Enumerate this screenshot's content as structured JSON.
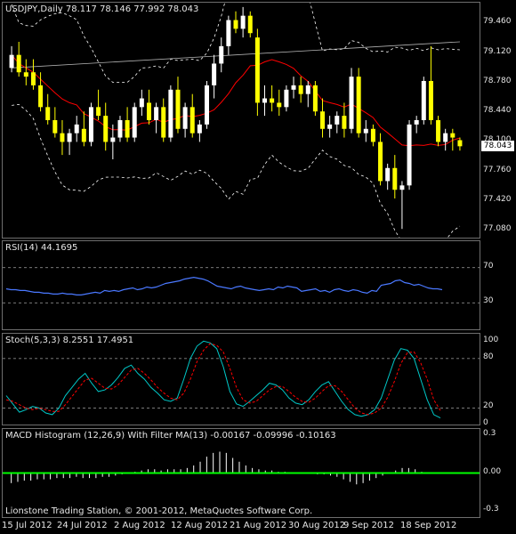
{
  "chart_data": [
    {
      "type": "candlestick",
      "title": "USDJPY,Daily  78.117 78.146 77.992 78.043",
      "y_ticks": [
        "79.460",
        "79.120",
        "78.780",
        "78.440",
        "78.100",
        "77.760",
        "77.420",
        "77.080"
      ],
      "ylim": [
        77.0,
        79.7
      ],
      "current_price": "78.043",
      "candles": [
        [
          78.95,
          79.2,
          78.9,
          79.1
        ],
        [
          79.1,
          79.25,
          78.85,
          78.9
        ],
        [
          78.9,
          79.05,
          78.75,
          78.85
        ],
        [
          78.9,
          79.05,
          78.7,
          78.75
        ],
        [
          78.75,
          78.9,
          78.45,
          78.5
        ],
        [
          78.5,
          78.65,
          78.3,
          78.35
        ],
        [
          78.35,
          78.5,
          78.15,
          78.2
        ],
        [
          78.2,
          78.35,
          77.95,
          78.1
        ],
        [
          78.1,
          78.25,
          77.95,
          78.2
        ],
        [
          78.2,
          78.4,
          78.1,
          78.3
        ],
        [
          78.25,
          78.45,
          78.05,
          78.1
        ],
        [
          78.1,
          78.55,
          78.05,
          78.5
        ],
        [
          78.5,
          78.7,
          78.35,
          78.4
        ],
        [
          78.4,
          78.55,
          78.0,
          78.1
        ],
        [
          78.1,
          78.3,
          77.9,
          78.15
        ],
        [
          78.15,
          78.4,
          78.1,
          78.35
        ],
        [
          78.35,
          78.5,
          78.1,
          78.15
        ],
        [
          78.15,
          78.55,
          78.1,
          78.5
        ],
        [
          78.5,
          78.7,
          78.4,
          78.6
        ],
        [
          78.55,
          78.7,
          78.3,
          78.35
        ],
        [
          78.35,
          78.55,
          78.2,
          78.5
        ],
        [
          78.5,
          78.6,
          78.1,
          78.15
        ],
        [
          78.15,
          78.75,
          78.1,
          78.7
        ],
        [
          78.7,
          78.85,
          78.2,
          78.25
        ],
        [
          78.25,
          78.55,
          78.15,
          78.5
        ],
        [
          78.5,
          78.65,
          78.15,
          78.2
        ],
        [
          78.2,
          78.35,
          78.1,
          78.3
        ],
        [
          78.3,
          78.8,
          78.25,
          78.75
        ],
        [
          78.75,
          79.1,
          78.6,
          79.0
        ],
        [
          79.0,
          79.3,
          78.9,
          79.2
        ],
        [
          79.2,
          79.55,
          79.1,
          79.5
        ],
        [
          79.5,
          79.6,
          79.35,
          79.4
        ],
        [
          79.4,
          79.65,
          79.3,
          79.55
        ],
        [
          79.55,
          79.6,
          79.3,
          79.35
        ],
        [
          79.3,
          79.4,
          78.4,
          78.55
        ],
        [
          78.55,
          78.75,
          78.4,
          78.6
        ],
        [
          78.6,
          78.75,
          78.45,
          78.55
        ],
        [
          78.55,
          78.7,
          78.4,
          78.5
        ],
        [
          78.5,
          78.75,
          78.45,
          78.7
        ],
        [
          78.7,
          78.85,
          78.6,
          78.75
        ],
        [
          78.75,
          78.85,
          78.55,
          78.65
        ],
        [
          78.65,
          78.8,
          78.5,
          78.75
        ],
        [
          78.75,
          78.8,
          78.4,
          78.45
        ],
        [
          78.45,
          78.6,
          78.15,
          78.25
        ],
        [
          78.25,
          78.4,
          78.15,
          78.3
        ],
        [
          78.3,
          78.45,
          78.2,
          78.4
        ],
        [
          78.4,
          78.55,
          78.15,
          78.25
        ],
        [
          78.25,
          78.95,
          78.2,
          78.85
        ],
        [
          78.85,
          78.95,
          78.15,
          78.2
        ],
        [
          78.2,
          78.35,
          78.1,
          78.25
        ],
        [
          78.25,
          78.3,
          78.05,
          78.1
        ],
        [
          78.1,
          78.2,
          77.6,
          77.65
        ],
        [
          77.65,
          77.85,
          77.55,
          77.8
        ],
        [
          77.8,
          77.95,
          77.45,
          77.55
        ],
        [
          77.55,
          77.65,
          77.1,
          77.6
        ],
        [
          77.6,
          78.35,
          77.55,
          78.3
        ],
        [
          78.3,
          78.4,
          78.2,
          78.35
        ],
        [
          78.35,
          78.85,
          78.3,
          78.8
        ],
        [
          78.8,
          79.2,
          78.3,
          78.35
        ],
        [
          78.35,
          78.4,
          78.05,
          78.1
        ],
        [
          78.1,
          78.25,
          78.0,
          78.2
        ],
        [
          78.2,
          78.25,
          78.0,
          78.15
        ],
        [
          78.12,
          78.15,
          78.0,
          78.05
        ]
      ]
    },
    {
      "type": "line",
      "title": "RSI(14) 44.1695",
      "y_ticks": [
        "70",
        "30"
      ],
      "ylim": [
        0,
        100
      ],
      "values": [
        46,
        45,
        45,
        44,
        44,
        43,
        42,
        42,
        41,
        41,
        40,
        40,
        41,
        40,
        40,
        39,
        39,
        40,
        41,
        42,
        41,
        44,
        43,
        44,
        43,
        45,
        46,
        47,
        45,
        46,
        48,
        47,
        48,
        50,
        52,
        53,
        54,
        55,
        57,
        58,
        59,
        58,
        57,
        55,
        52,
        49,
        48,
        47,
        46,
        48,
        49,
        47,
        46,
        45,
        44,
        45,
        46,
        45,
        48,
        47,
        49,
        48,
        47,
        43,
        44,
        45,
        46,
        43,
        44,
        42,
        45,
        46,
        44,
        43,
        45,
        44,
        42,
        41,
        44,
        43,
        50,
        51,
        52,
        55,
        56,
        53,
        52,
        50,
        51,
        49,
        47,
        46,
        46,
        45
      ]
    },
    {
      "type": "line",
      "title": "Stoch(5,3,3) 8.2551 17.4951",
      "y_ticks": [
        "100",
        "80",
        "20",
        "0"
      ],
      "ylim": [
        0,
        110
      ],
      "series": [
        {
          "values": [
            35,
            25,
            15,
            18,
            22,
            20,
            14,
            12,
            20,
            35,
            45,
            55,
            62,
            50,
            40,
            42,
            48,
            57,
            68,
            72,
            62,
            55,
            45,
            38,
            30,
            28,
            32,
            55,
            80,
            95,
            101,
            99,
            92,
            70,
            40,
            25,
            22,
            28,
            35,
            42,
            50,
            48,
            42,
            32,
            26,
            24,
            30,
            40,
            48,
            52,
            40,
            28,
            18,
            12,
            10,
            12,
            18,
            32,
            55,
            78,
            92,
            90,
            80,
            55,
            30,
            12,
            8
          ]
        },
        {
          "values": [
            30,
            28,
            24,
            20,
            18,
            20,
            18,
            16,
            16,
            24,
            34,
            44,
            54,
            56,
            50,
            44,
            43,
            48,
            57,
            66,
            68,
            62,
            54,
            45,
            38,
            32,
            30,
            38,
            55,
            76,
            90,
            98,
            96,
            88,
            68,
            45,
            30,
            26,
            28,
            35,
            42,
            46,
            46,
            40,
            33,
            28,
            27,
            32,
            40,
            47,
            47,
            40,
            30,
            20,
            14,
            12,
            14,
            20,
            33,
            52,
            74,
            87,
            88,
            75,
            55,
            30,
            17
          ]
        }
      ]
    },
    {
      "type": "bar",
      "title": "MACD Histogram (12,26,9) With Filter MA(13)  -0.00167 -0.09996 -0.10163",
      "y_ticks": [
        "0.3",
        "0.00",
        "-0.3"
      ],
      "ylim": [
        -0.35,
        0.35
      ],
      "values": [
        -0.08,
        -0.07,
        -0.06,
        -0.06,
        -0.05,
        -0.05,
        -0.05,
        -0.04,
        -0.04,
        -0.04,
        -0.03,
        -0.04,
        -0.04,
        -0.04,
        -0.03,
        -0.03,
        -0.02,
        -0.01,
        0.0,
        0.01,
        0.02,
        0.03,
        0.03,
        0.02,
        0.03,
        0.03,
        0.03,
        0.04,
        0.06,
        0.09,
        0.13,
        0.16,
        0.17,
        0.16,
        0.12,
        0.09,
        0.06,
        0.04,
        0.03,
        0.02,
        0.02,
        0.01,
        0.01,
        0.0,
        0.0,
        0.0,
        0.0,
        -0.01,
        -0.01,
        -0.02,
        -0.03,
        -0.05,
        -0.07,
        -0.09,
        -0.08,
        -0.06,
        -0.04,
        -0.02,
        0.0,
        0.02,
        0.04,
        0.04,
        0.03,
        0.01,
        0.0
      ],
      "filter_value": "0.00"
    }
  ],
  "x_labels": [
    "15 Jul 2012",
    "24 Jul 2012",
    "2 Aug 2012",
    "12 Aug 2012",
    "21 Aug 2012",
    "30 Aug 2012",
    "9 Sep 2012",
    "18 Sep 2012"
  ],
  "footer": "Lionstone Trading Station, © 2001-2012, MetaQuotes Software Corp.",
  "colors": {
    "bull": "#ffff00",
    "bear": "#ffffff",
    "ma": "#ff0000",
    "band": "#ffffff",
    "sma": "#b0b0b0",
    "rsi": "#4a78ff",
    "stoch_main": "#00c8c8",
    "stoch_signal": "#ff0000",
    "macd": "#ffffff",
    "filter": "#00ff00"
  }
}
